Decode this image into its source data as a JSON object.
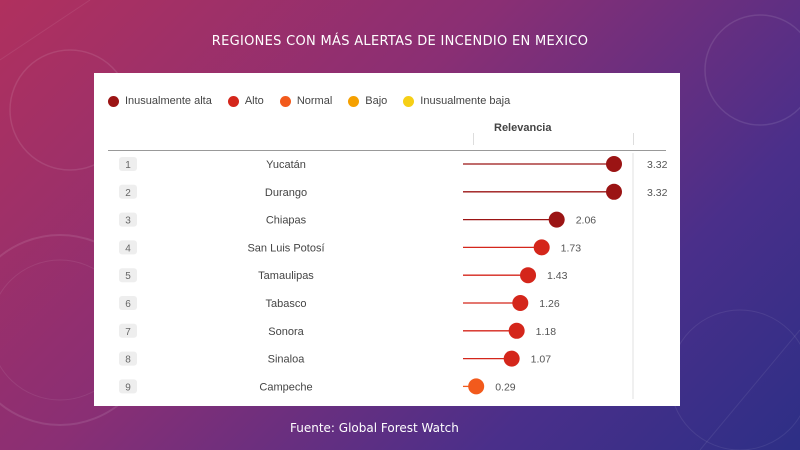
{
  "slide": {
    "title": "REGIONES CON MÁS ALERTAS DE INCENDIO EN MEXICO",
    "source": "Fuente: Global Forest Watch"
  },
  "chart_data": {
    "type": "lollipop",
    "column_header": "Relevancia",
    "legend": [
      {
        "label": "Inusualmente alta",
        "color": "#9b1414"
      },
      {
        "label": "Alto",
        "color": "#d4261b"
      },
      {
        "label": "Normal",
        "color": "#f25a1c"
      },
      {
        "label": "Bajo",
        "color": "#f5a000"
      },
      {
        "label": "Inusualmente baja",
        "color": "#f6cf16"
      }
    ],
    "rows": [
      {
        "rank": "1",
        "region": "Yucatán",
        "value": 3.32,
        "label": "3.32",
        "level": "Inusualmente alta",
        "color": "#9b1414"
      },
      {
        "rank": "2",
        "region": "Durango",
        "value": 3.32,
        "label": "3.32",
        "level": "Inusualmente alta",
        "color": "#9b1414"
      },
      {
        "rank": "3",
        "region": "Chiapas",
        "value": 2.06,
        "label": "2.06",
        "level": "Inusualmente alta",
        "color": "#9b1414"
      },
      {
        "rank": "4",
        "region": "San Luis Potosí",
        "value": 1.73,
        "label": "1.73",
        "level": "Alto",
        "color": "#d4261b"
      },
      {
        "rank": "5",
        "region": "Tamaulipas",
        "value": 1.43,
        "label": "1.43",
        "level": "Alto",
        "color": "#d4261b"
      },
      {
        "rank": "6",
        "region": "Tabasco",
        "value": 1.26,
        "label": "1.26",
        "level": "Alto",
        "color": "#d4261b"
      },
      {
        "rank": "7",
        "region": "Sonora",
        "value": 1.18,
        "label": "1.18",
        "level": "Alto",
        "color": "#d4261b"
      },
      {
        "rank": "8",
        "region": "Sinaloa",
        "value": 1.07,
        "label": "1.07",
        "level": "Alto",
        "color": "#d4261b"
      },
      {
        "rank": "9",
        "region": "Campeche",
        "value": 0.29,
        "label": "0.29",
        "level": "Normal",
        "color": "#f25a1c"
      }
    ],
    "xlim": [
      0,
      3.32
    ]
  }
}
